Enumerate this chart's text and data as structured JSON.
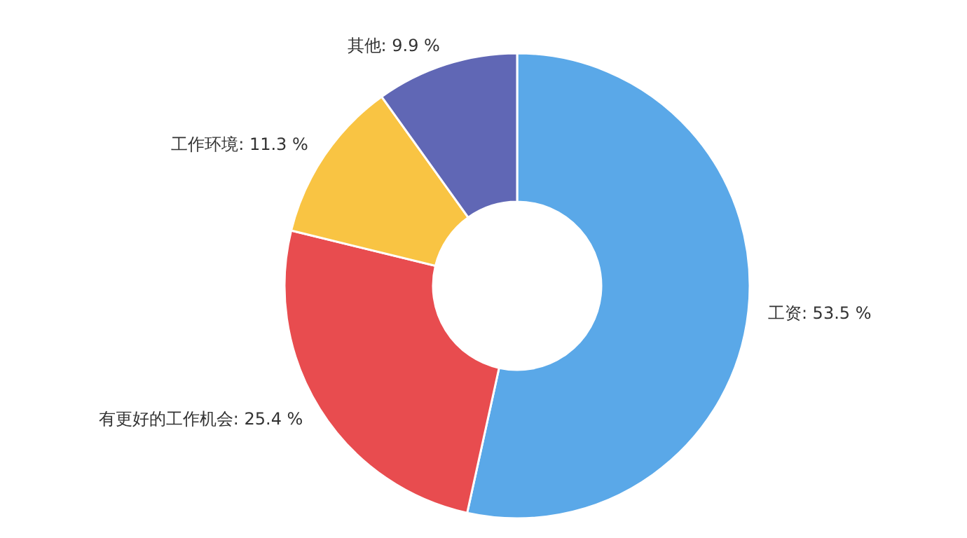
{
  "chart_data": {
    "type": "donut",
    "categories": [
      "工资",
      "有更好的工作机会",
      "工作环境",
      "其他"
    ],
    "values": [
      53.5,
      25.4,
      11.3,
      9.9
    ],
    "value_labels": [
      "53.5 %",
      "25.4 %",
      "11.3 %",
      "9.9 %"
    ],
    "colors": [
      "#5aa8e8",
      "#e84c4f",
      "#f9c443",
      "#6067b5"
    ],
    "legend": false
  }
}
